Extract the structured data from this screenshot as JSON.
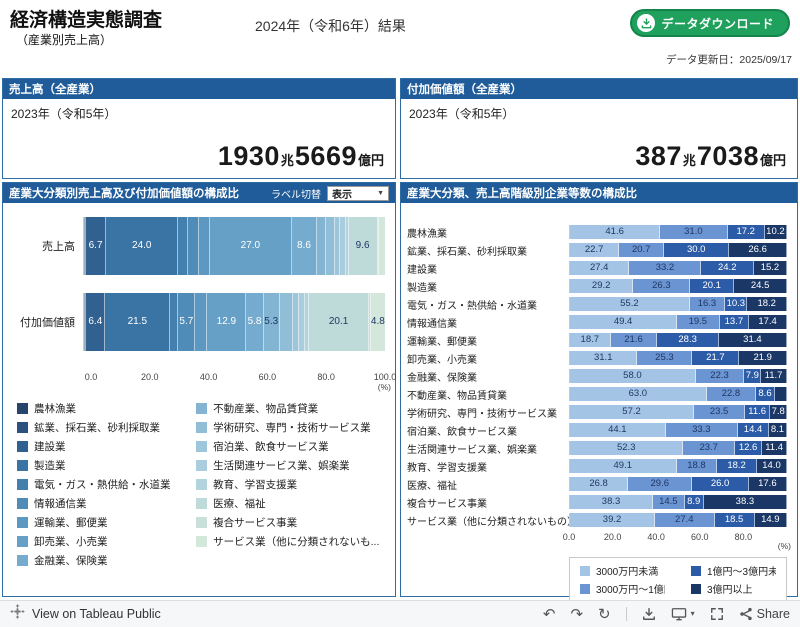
{
  "header": {
    "title": "経済構造実態調査",
    "subtitle": "（産業別売上高）",
    "result_label": "2024年（令和6年）結果",
    "download_button": "データダウンロード",
    "updated": "データ更新日：2025/09/17"
  },
  "kpi": {
    "sales": {
      "title": "売上高（全産業）",
      "year": "2023年（令和5年）",
      "value_int": "1930",
      "unit1": "兆",
      "value_dec": "5669",
      "unit2": "億円"
    },
    "value_added": {
      "title": "付加価値額（全産業）",
      "year": "2023年（令和5年）",
      "value_int": "387",
      "unit1": "兆",
      "value_dec": "7038",
      "unit2": "億円"
    }
  },
  "composition_panel": {
    "toggle_label": "ラベル切替",
    "toggle_value": "表示"
  },
  "icons": {
    "caret_down": "▼",
    "undo": "↶",
    "redo": "↷",
    "reset": "↻"
  },
  "colors": {
    "panel_header": "#1F5C99",
    "panel_border": "#2E6DA4",
    "button_green": "#1FA15D",
    "button_green_dark": "#15844A",
    "seg_text_dark": "#1F3864"
  },
  "chart_data": [
    {
      "id": "composition",
      "type": "bar",
      "stacked": true,
      "orientation": "horizontal",
      "title": "産業大分類別売上高及び付加価値額の構成比",
      "categories": [
        "農林漁業",
        "鉱業、採石業、砂利採取業",
        "建設業",
        "製造業",
        "電気・ガス・熱供給・水道業",
        "情報通信業",
        "運輸業、郵便業",
        "卸売業、小売業",
        "金融業、保険業",
        "不動産業、物品賃貸業",
        "学術研究、専門・技術サービス業",
        "宿泊業、飲食サービス業",
        "生活関連サービス業、娯楽業",
        "教育、学習支援業",
        "医療、福祉",
        "複合サービス事業",
        "サービス業（他に分類されないも..."
      ],
      "series": [
        {
          "name": "売上高",
          "values": [
            0.3,
            0.1,
            6.7,
            24.0,
            3.3,
            3.7,
            3.6,
            27.0,
            8.6,
            2.9,
            2.9,
            1.6,
            2.2,
            0.8,
            9.6,
            0.4,
            2.3
          ]
        },
        {
          "name": "付加価値額",
          "values": [
            0.4,
            0.1,
            6.4,
            21.5,
            2.7,
            5.7,
            4.0,
            12.9,
            5.8,
            5.3,
            4.3,
            2.1,
            1.9,
            1.4,
            20.1,
            0.6,
            4.8
          ]
        }
      ],
      "palette": [
        "#26456C",
        "#2B527E",
        "#316190",
        "#3A74A4",
        "#4380AE",
        "#4F8CB8",
        "#5C98C1",
        "#66A0C7",
        "#74ABCE",
        "#83B5D3",
        "#90BED7",
        "#9DC6DA",
        "#A9CDDC",
        "#B4D4DD",
        "#BEDAD9",
        "#C9E0DA",
        "#D3E7DB"
      ],
      "light_text_max_index": 8,
      "label_threshold": 4.5,
      "xlim": [
        0,
        100
      ],
      "ticks": [
        "0.0",
        "20.0",
        "40.0",
        "60.0",
        "80.0",
        "100.0"
      ],
      "unit": "(%)",
      "legend_position": "bottom"
    },
    {
      "id": "size_class",
      "type": "bar",
      "stacked": true,
      "orientation": "horizontal",
      "title": "産業大分類、売上高階級別企業等数の構成比",
      "categories": [
        "農林漁業",
        "鉱業、採石業、砂利採取業",
        "建設業",
        "製造業",
        "電気・ガス・熱供給・水道業",
        "情報通信業",
        "運輸業、郵便業",
        "卸売業、小売業",
        "金融業、保険業",
        "不動産業、物品賃貸業",
        "学術研究、専門・技術サービス業",
        "宿泊業、飲食サービス業",
        "生活関連サービス業、娯楽業",
        "教育、学習支援業",
        "医療、福祉",
        "複合サービス事業",
        "サービス業（他に分類されないもの）"
      ],
      "series": [
        {
          "name": "3000万円未満",
          "color": "#A4C4E5",
          "label_color": "#1F3864",
          "values": [
            41.6,
            22.7,
            27.4,
            29.2,
            55.2,
            49.4,
            18.7,
            31.1,
            58.0,
            63.0,
            57.2,
            44.1,
            52.3,
            49.1,
            26.8,
            38.3,
            39.2
          ]
        },
        {
          "name": "3000万円～1億円未満",
          "color": "#6B94D2",
          "label_color": "#1F3864",
          "values": [
            31.0,
            20.7,
            33.2,
            26.3,
            16.3,
            19.5,
            21.6,
            25.3,
            22.3,
            22.8,
            23.5,
            33.3,
            23.7,
            18.8,
            29.6,
            14.5,
            27.4
          ]
        },
        {
          "name": "1億円～3億円未満",
          "color": "#2C5CA8",
          "label_color": "#FFFFFF",
          "values": [
            17.2,
            30.0,
            24.2,
            20.1,
            10.3,
            13.7,
            28.3,
            21.7,
            7.9,
            8.6,
            11.6,
            14.4,
            12.6,
            18.2,
            26.0,
            8.9,
            18.5
          ]
        },
        {
          "name": "3億円以上",
          "color": "#1B3766",
          "label_color": "#FFFFFF",
          "values": [
            10.2,
            26.6,
            15.2,
            24.5,
            18.2,
            17.4,
            31.4,
            21.9,
            11.7,
            5.6,
            7.8,
            8.1,
            11.4,
            14.0,
            17.6,
            38.3,
            14.9
          ]
        }
      ],
      "label_threshold": 7.0,
      "xlim": [
        0,
        100
      ],
      "ticks": [
        "0.0",
        "20.0",
        "40.0",
        "60.0",
        "80.0"
      ],
      "unit": "(%)",
      "legend_position": "bottom"
    }
  ],
  "footer": {
    "view_text": "View on Tableau Public",
    "share_label": "Share"
  }
}
